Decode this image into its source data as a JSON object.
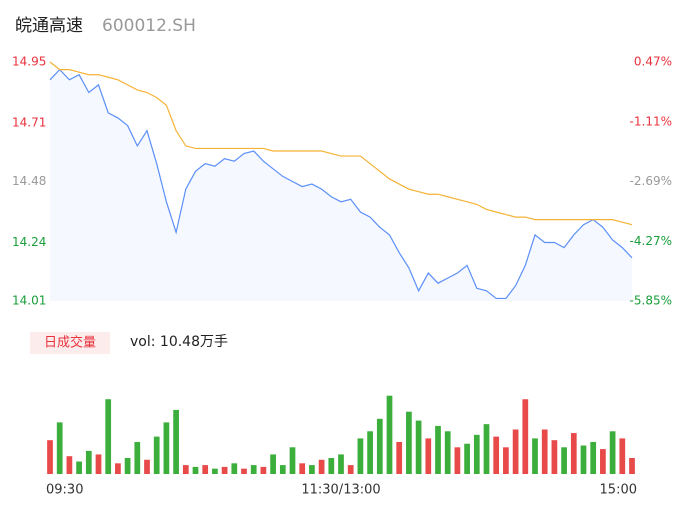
{
  "header": {
    "title": "皖通高速",
    "subtitle": "600012.SH"
  },
  "chart_data": [
    {
      "type": "line",
      "xlim": [
        0,
        240
      ],
      "xticks": [
        {
          "value": 0,
          "label": "09:30"
        },
        {
          "value": 120,
          "label": "11:30/13:00"
        },
        {
          "value": 240,
          "label": "15:00"
        }
      ],
      "ylim": [
        14.01,
        14.95
      ],
      "yticks": [
        14.95,
        14.71,
        14.48,
        14.24,
        14.01
      ],
      "ytick_colors": [
        "#e8323c",
        "#e8323c",
        "#999999",
        "#1a9e3a",
        "#1a9e3a"
      ],
      "y2lim": [
        -5.85,
        0.47
      ],
      "y2ticks": [
        {
          "value": 0.47,
          "label": "0.47%"
        },
        {
          "value": -1.11,
          "label": "-1.11%"
        },
        {
          "value": -2.69,
          "label": "-2.69%"
        },
        {
          "value": -4.27,
          "label": "-4.27%"
        },
        {
          "value": -5.85,
          "label": "-5.85%"
        }
      ],
      "x": [
        0,
        4,
        8,
        12,
        16,
        20,
        24,
        28,
        32,
        36,
        40,
        44,
        48,
        52,
        56,
        60,
        64,
        68,
        72,
        76,
        80,
        84,
        88,
        92,
        96,
        100,
        104,
        108,
        112,
        116,
        120,
        124,
        128,
        132,
        136,
        140,
        144,
        148,
        152,
        156,
        160,
        164,
        168,
        172,
        176,
        180,
        184,
        188,
        192,
        196,
        200,
        204,
        208,
        212,
        216,
        220,
        224,
        228,
        232,
        236,
        240
      ],
      "series": [
        {
          "color": "#5b8ff9",
          "area": true,
          "values": [
            14.88,
            14.92,
            14.88,
            14.9,
            14.83,
            14.86,
            14.75,
            14.73,
            14.7,
            14.62,
            14.68,
            14.55,
            14.4,
            14.28,
            14.45,
            14.52,
            14.55,
            14.54,
            14.57,
            14.56,
            14.59,
            14.6,
            14.56,
            14.53,
            14.5,
            14.48,
            14.46,
            14.47,
            14.45,
            14.42,
            14.4,
            14.41,
            14.36,
            14.34,
            14.3,
            14.27,
            14.2,
            14.14,
            14.05,
            14.12,
            14.08,
            14.1,
            14.12,
            14.15,
            14.06,
            14.05,
            14.02,
            14.02,
            14.07,
            14.15,
            14.27,
            14.24,
            14.24,
            14.22,
            14.27,
            14.31,
            14.33,
            14.3,
            14.25,
            14.22,
            14.18
          ]
        },
        {
          "color": "#f5b335",
          "area": false,
          "values": [
            14.95,
            14.92,
            14.92,
            14.91,
            14.9,
            14.9,
            14.89,
            14.88,
            14.86,
            14.84,
            14.83,
            14.81,
            14.78,
            14.68,
            14.62,
            14.61,
            14.61,
            14.61,
            14.61,
            14.61,
            14.61,
            14.61,
            14.61,
            14.6,
            14.6,
            14.6,
            14.6,
            14.6,
            14.6,
            14.59,
            14.58,
            14.58,
            14.58,
            14.55,
            14.52,
            14.49,
            14.47,
            14.45,
            14.44,
            14.43,
            14.43,
            14.42,
            14.41,
            14.4,
            14.39,
            14.37,
            14.36,
            14.35,
            14.34,
            14.34,
            14.33,
            14.33,
            14.33,
            14.33,
            14.33,
            14.33,
            14.33,
            14.33,
            14.33,
            14.32,
            14.31
          ]
        }
      ]
    },
    {
      "type": "bar",
      "legend": "日成交量",
      "annotation": "vol: 10.48万手",
      "xlim": [
        0,
        240
      ],
      "ylim": [
        0,
        100
      ],
      "x": [
        0,
        4,
        8,
        12,
        16,
        20,
        24,
        28,
        32,
        36,
        40,
        44,
        48,
        52,
        56,
        60,
        64,
        68,
        72,
        76,
        80,
        84,
        88,
        92,
        96,
        100,
        104,
        108,
        112,
        116,
        120,
        124,
        128,
        132,
        136,
        140,
        144,
        148,
        152,
        156,
        160,
        164,
        168,
        172,
        176,
        180,
        184,
        188,
        192,
        196,
        200,
        204,
        208,
        212,
        216,
        220,
        224,
        228,
        232,
        236,
        240
      ],
      "values": [
        38,
        58,
        20,
        14,
        26,
        22,
        84,
        12,
        18,
        36,
        16,
        42,
        58,
        72,
        10,
        8,
        10,
        6,
        8,
        12,
        6,
        10,
        8,
        22,
        10,
        30,
        12,
        10,
        16,
        18,
        22,
        10,
        40,
        48,
        62,
        88,
        36,
        70,
        60,
        40,
        54,
        48,
        30,
        34,
        44,
        56,
        42,
        30,
        50,
        84,
        40,
        50,
        38,
        30,
        46,
        32,
        36,
        28,
        48,
        40,
        18
      ],
      "bar_colors": [
        "#e84a4a",
        "#3cae3c",
        "#e84a4a",
        "#3cae3c",
        "#3cae3c",
        "#e84a4a",
        "#3cae3c",
        "#e84a4a",
        "#3cae3c",
        "#3cae3c",
        "#e84a4a",
        "#3cae3c",
        "#3cae3c",
        "#3cae3c",
        "#e84a4a",
        "#3cae3c",
        "#e84a4a",
        "#3cae3c",
        "#e84a4a",
        "#3cae3c",
        "#e84a4a",
        "#3cae3c",
        "#e84a4a",
        "#3cae3c",
        "#3cae3c",
        "#3cae3c",
        "#e84a4a",
        "#3cae3c",
        "#e84a4a",
        "#3cae3c",
        "#3cae3c",
        "#e84a4a",
        "#3cae3c",
        "#3cae3c",
        "#3cae3c",
        "#3cae3c",
        "#e84a4a",
        "#3cae3c",
        "#3cae3c",
        "#e84a4a",
        "#3cae3c",
        "#3cae3c",
        "#e84a4a",
        "#3cae3c",
        "#3cae3c",
        "#3cae3c",
        "#e84a4a",
        "#e84a4a",
        "#e84a4a",
        "#e84a4a",
        "#3cae3c",
        "#e84a4a",
        "#e84a4a",
        "#3cae3c",
        "#e84a4a",
        "#3cae3c",
        "#3cae3c",
        "#e84a4a",
        "#3cae3c",
        "#e84a4a",
        "#e84a4a"
      ]
    }
  ]
}
